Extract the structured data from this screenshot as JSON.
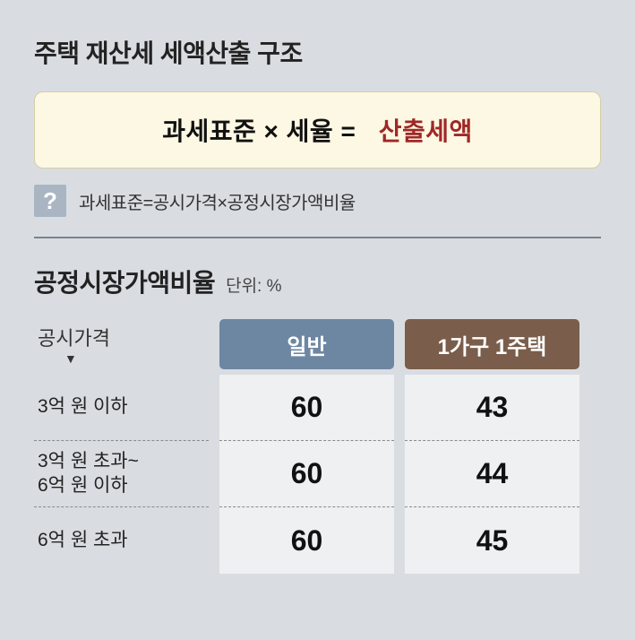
{
  "title": "주택 재산세 세액산출 구조",
  "formula": {
    "lhs": "과세표준 × 세율 =",
    "rhs": "산출세액",
    "box_bg": "#fdf8e3",
    "box_border": "#d4cfa8",
    "text_color": "#111111",
    "result_color": "#a02828",
    "fontsize": 28
  },
  "note": {
    "icon": "?",
    "icon_bg": "#a9b5c3",
    "text": "과세표준=공시가격×공정시장가액비율"
  },
  "divider_color": "#7a828c",
  "section": {
    "title": "공정시장가액비율",
    "unit": "단위: %"
  },
  "table": {
    "label_header": "공시가격",
    "columns": [
      {
        "name": "일반",
        "bg": "#6d87a3"
      },
      {
        "name": "1가구 1주택",
        "bg": "#7a5d4a"
      }
    ],
    "rows": [
      {
        "label": "3억 원 이하",
        "values": [
          60,
          43
        ]
      },
      {
        "label_line1": "3억 원 초과~",
        "label_line2": "6억 원 이하",
        "values": [
          60,
          44
        ]
      },
      {
        "label": "6억 원 초과",
        "values": [
          60,
          45
        ]
      }
    ],
    "cell_bg": "#eef0f2",
    "value_fontsize": 32,
    "label_fontsize": 21
  },
  "page_bg": "#d9dde2"
}
